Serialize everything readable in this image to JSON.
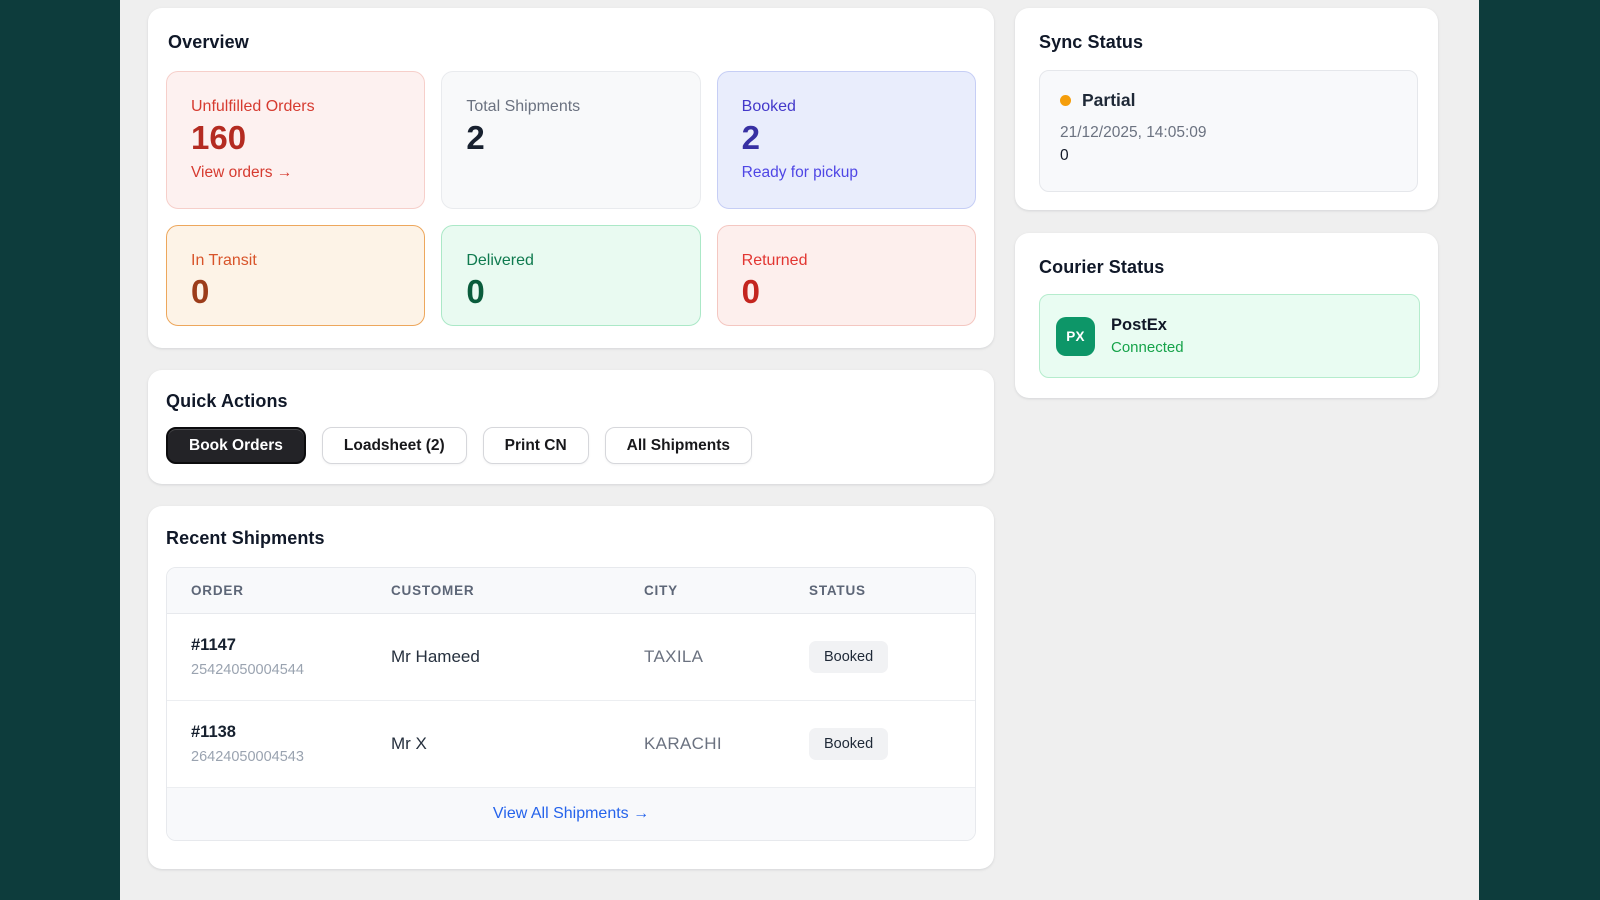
{
  "theme": {
    "edge_color": "#0d3c3c",
    "page_bg": "#efefef",
    "accent_blue": "#2563eb",
    "warning_dot": "#f59e0b",
    "courier_green": "#0d9668",
    "connected_green": "#16a34a"
  },
  "overview": {
    "title": "Overview",
    "tiles": [
      {
        "label": "Unfulfilled Orders",
        "value": "160",
        "link": "View orders →",
        "variant": "red"
      },
      {
        "label": "Total Shipments",
        "value": "2",
        "variant": "gray"
      },
      {
        "label": "Booked",
        "value": "2",
        "sub": "Ready for pickup",
        "variant": "indigo"
      },
      {
        "label": "In Transit",
        "value": "0",
        "variant": "orange"
      },
      {
        "label": "Delivered",
        "value": "0",
        "variant": "green"
      },
      {
        "label": "Returned",
        "value": "0",
        "variant": "rose"
      }
    ]
  },
  "quick_actions": {
    "title": "Quick Actions",
    "buttons": [
      {
        "label": "Book Orders",
        "variant": "dark"
      },
      {
        "label": "Loadsheet (2)",
        "variant": "light"
      },
      {
        "label": "Print CN",
        "variant": "light"
      },
      {
        "label": "All Shipments",
        "variant": "light"
      }
    ]
  },
  "recent_shipments": {
    "title": "Recent Shipments",
    "columns": [
      "ORDER",
      "CUSTOMER",
      "CITY",
      "STATUS"
    ],
    "rows": [
      {
        "order": "#1147",
        "tracking": "25424050004544",
        "customer": "Mr Hameed",
        "city": "TAXILA",
        "status": "Booked"
      },
      {
        "order": "#1138",
        "tracking": "26424050004543",
        "customer": "Mr X",
        "city": "KARACHI",
        "status": "Booked"
      }
    ],
    "footer_link": "View All Shipments →"
  },
  "sync_status": {
    "title": "Sync Status",
    "state": "Partial",
    "timestamp": "21/12/2025, 14:05:09",
    "count": "0"
  },
  "courier_status": {
    "title": "Courier Status",
    "courier": {
      "initials": "PX",
      "name": "PostEx",
      "status": "Connected"
    }
  }
}
